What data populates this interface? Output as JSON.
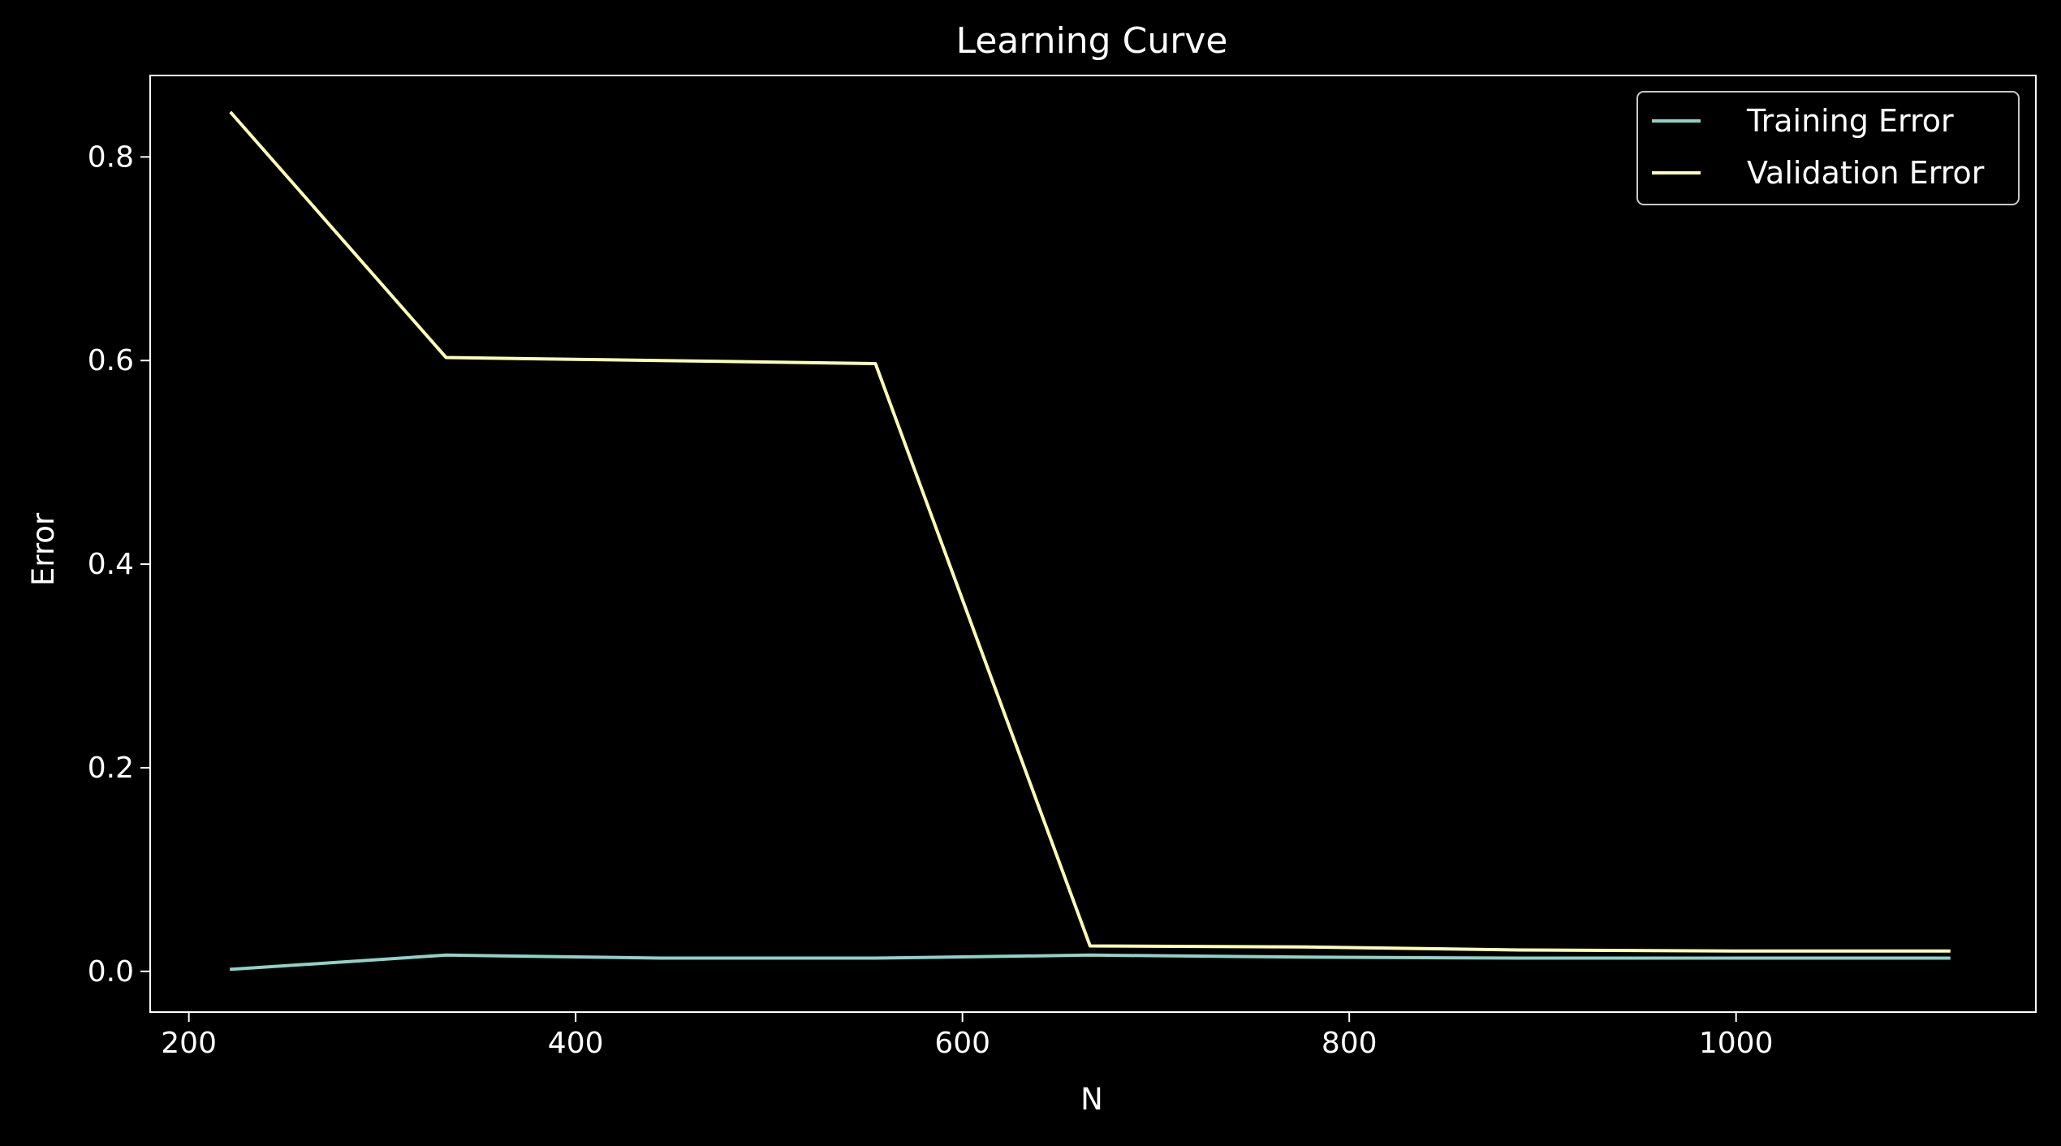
{
  "chart_data": {
    "type": "line",
    "title": "Learning Curve",
    "xlabel": "N",
    "ylabel": "Error",
    "xlim": [
      180,
      1155
    ],
    "ylim": [
      -0.04,
      0.88
    ],
    "xticks": [
      200,
      400,
      600,
      800,
      1000
    ],
    "yticks": [
      0.0,
      0.2,
      0.4,
      0.6,
      0.8
    ],
    "xtick_labels": [
      "200",
      "400",
      "600",
      "800",
      "1000"
    ],
    "ytick_labels": [
      "0.0",
      "0.2",
      "0.4",
      "0.6",
      "0.8"
    ],
    "grid": false,
    "legend_position": "top-right",
    "background": "#000000",
    "x": [
      222,
      333,
      444,
      555,
      666,
      777,
      888,
      999,
      1110
    ],
    "series": [
      {
        "name": "Training Error",
        "color": "#8dd3c7",
        "values": [
          0.002,
          0.016,
          0.013,
          0.013,
          0.016,
          0.014,
          0.013,
          0.013,
          0.013
        ]
      },
      {
        "name": "Validation Error",
        "color": "#feffb3",
        "values": [
          0.843,
          0.603,
          0.6,
          0.597,
          0.025,
          0.024,
          0.021,
          0.02,
          0.02
        ]
      }
    ]
  }
}
